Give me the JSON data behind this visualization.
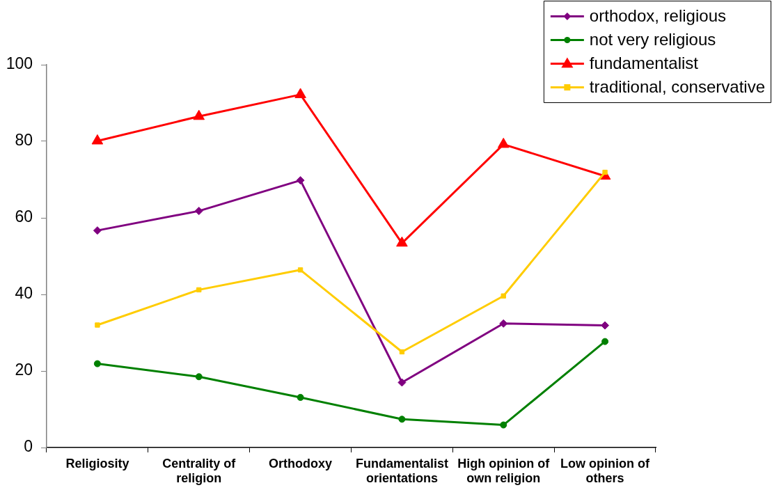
{
  "chart_data": {
    "type": "line",
    "categories": [
      "Religiosity",
      "Centrality of religion",
      "Orthodoxy",
      "Fundamentalist orientations",
      "High opinion of own religion",
      "Low opinion of others"
    ],
    "series": [
      {
        "name": "orthodox, religious",
        "color": "#800080",
        "marker": "diamond",
        "values": [
          56.7,
          61.8,
          69.8,
          17.0,
          32.4,
          31.9
        ]
      },
      {
        "name": "not very religious",
        "color": "#008000",
        "marker": "circle",
        "values": [
          21.9,
          18.5,
          13.1,
          7.4,
          5.9,
          27.7
        ]
      },
      {
        "name": "fundamentalist",
        "color": "#ff0000",
        "marker": "triangle",
        "values": [
          80.1,
          86.5,
          92.2,
          53.4,
          79.2,
          70.9
        ]
      },
      {
        "name": "traditional, conservative",
        "color": "#ffcc00",
        "marker": "square",
        "values": [
          32.0,
          41.2,
          46.4,
          25.0,
          39.6,
          71.9
        ]
      }
    ],
    "ylim": [
      0,
      100
    ],
    "yticks": [
      0,
      20,
      40,
      60,
      80,
      100
    ],
    "legend": "top right"
  }
}
